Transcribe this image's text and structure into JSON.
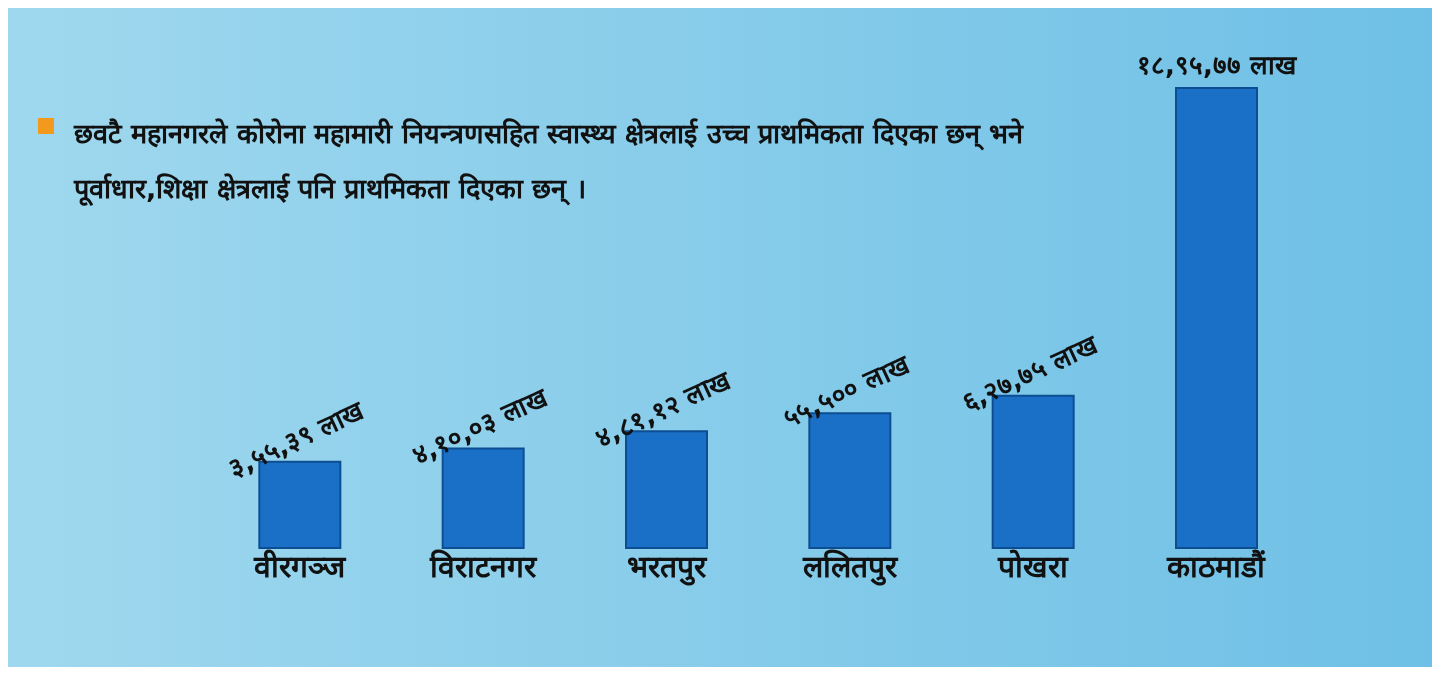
{
  "chart_data": {
    "type": "bar",
    "title": "छवटै महानगरले कोरोना महामारी नियन्त्रणसहित स्वास्थ्य क्षेत्रलाई उच्च प्राथमिकता दिएका छन् भने पूर्वाधार,शिक्षा क्षेत्रलाई पनि प्राथमिकता दिएका छन् ।",
    "categories": [
      "वीरगञ्ज",
      "विराटनगर",
      "भरतपुर",
      "ललितपुर",
      "पोखरा",
      "काठमाडौं"
    ],
    "values": [
      35539,
      41003,
      48112,
      55500,
      62775,
      189577
    ],
    "value_labels": [
      "३,५५,३९ लाख",
      "४,१०,०३ लाख",
      "४,८१,१२ लाख",
      "५५,५०० लाख",
      "६,२७,७५ लाख",
      "१८,९५,७७ लाख"
    ],
    "color": "#1a6fc6"
  }
}
